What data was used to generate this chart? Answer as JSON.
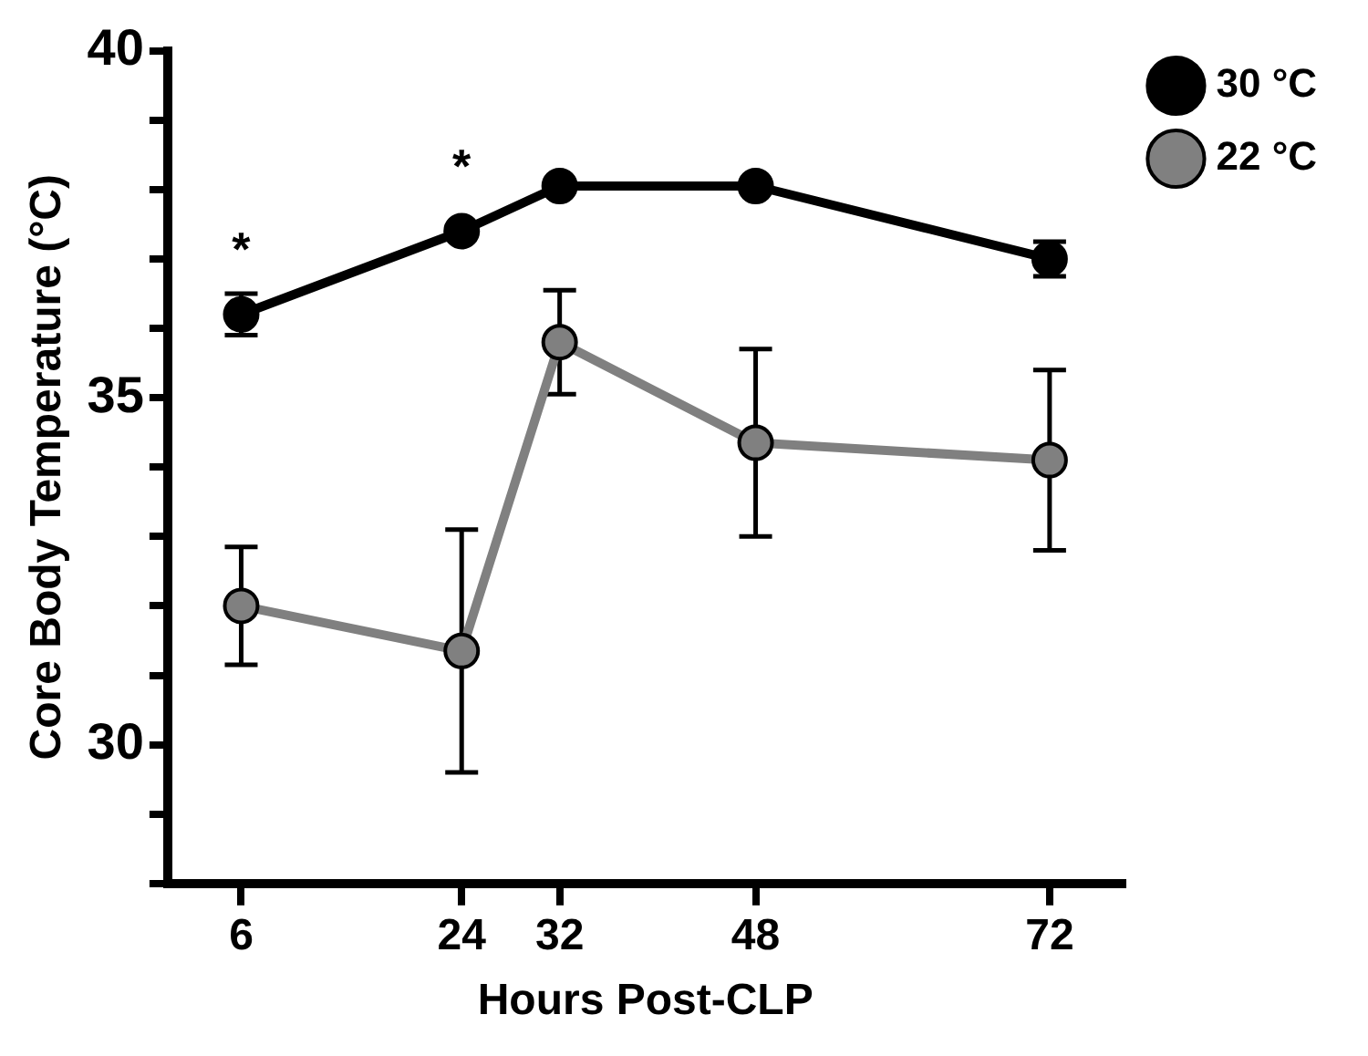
{
  "chart_data": {
    "type": "line",
    "xlabel": "Hours Post-CLP",
    "ylabel": "Core Body Temperature (°C)",
    "x": [
      6,
      24,
      32,
      48,
      72
    ],
    "series": [
      {
        "name": "30 °C",
        "color": "#000000",
        "values": [
          36.2,
          37.4,
          38.05,
          38.05,
          37.0
        ],
        "errors": [
          0.3,
          null,
          null,
          null,
          0.25
        ]
      },
      {
        "name": "22 °C",
        "color": "#808080",
        "values": [
          32.0,
          31.35,
          35.8,
          34.35,
          34.1
        ],
        "errors": [
          0.85,
          1.75,
          0.75,
          1.35,
          1.3
        ]
      }
    ],
    "xlim": [
      0,
      78
    ],
    "xticks": [
      6,
      24,
      32,
      48,
      72
    ],
    "ylim": [
      28,
      40
    ],
    "yticks": [
      {
        "value": 28,
        "label": null
      },
      {
        "value": 29,
        "label": null
      },
      30,
      {
        "value": 31,
        "label": null
      },
      {
        "value": 32,
        "label": null
      },
      {
        "value": 33,
        "label": null
      },
      {
        "value": 34,
        "label": null
      },
      35,
      {
        "value": 36,
        "label": null
      },
      {
        "value": 37,
        "label": null
      },
      {
        "value": 38,
        "label": null
      },
      {
        "value": 39,
        "label": null
      },
      40
    ],
    "annotations": [
      {
        "text": "*",
        "x": 6,
        "y": 36.2
      },
      {
        "text": "*",
        "x": 24,
        "y": 37.4
      }
    ],
    "grid": false,
    "legend": "right",
    "marker": "circle",
    "line_style": "solid"
  }
}
